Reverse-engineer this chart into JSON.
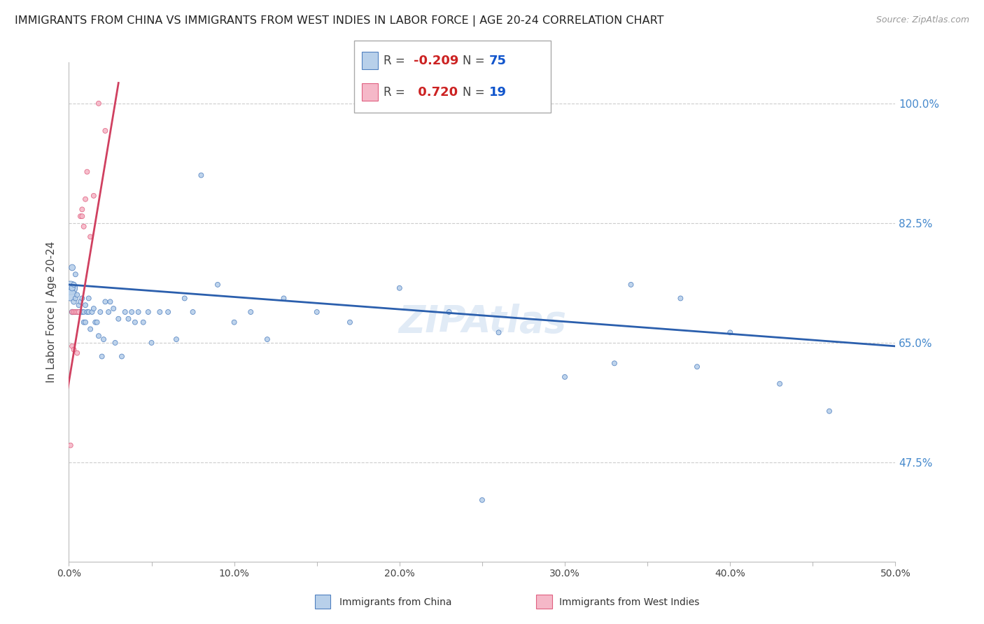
{
  "title": "IMMIGRANTS FROM CHINA VS IMMIGRANTS FROM WEST INDIES IN LABOR FORCE | AGE 20-24 CORRELATION CHART",
  "source": "Source: ZipAtlas.com",
  "ylabel": "In Labor Force | Age 20-24",
  "xlim": [
    0.0,
    0.5
  ],
  "ylim": [
    0.33,
    1.06
  ],
  "yticks": [
    0.475,
    0.65,
    0.825,
    1.0
  ],
  "ytick_labels": [
    "47.5%",
    "65.0%",
    "82.5%",
    "100.0%"
  ],
  "xticks": [
    0.0,
    0.05,
    0.1,
    0.15,
    0.2,
    0.25,
    0.3,
    0.35,
    0.4,
    0.45,
    0.5
  ],
  "xtick_labels": [
    "0.0%",
    "",
    "10.0%",
    "",
    "20.0%",
    "",
    "30.0%",
    "",
    "40.0%",
    "",
    "50.0%"
  ],
  "blue_R": "-0.209",
  "blue_N": "75",
  "pink_R": "0.720",
  "pink_N": "19",
  "blue_color": "#b8d0ea",
  "pink_color": "#f5b8c8",
  "blue_edge_color": "#5080c0",
  "pink_edge_color": "#e06080",
  "blue_line_color": "#2b5fad",
  "pink_line_color": "#d04060",
  "legend_label_blue": "Immigrants from China",
  "legend_label_pink": "Immigrants from West Indies",
  "blue_points_x": [
    0.001,
    0.001,
    0.002,
    0.002,
    0.002,
    0.003,
    0.003,
    0.003,
    0.004,
    0.004,
    0.004,
    0.005,
    0.005,
    0.006,
    0.006,
    0.007,
    0.007,
    0.008,
    0.008,
    0.009,
    0.009,
    0.01,
    0.01,
    0.011,
    0.012,
    0.012,
    0.013,
    0.014,
    0.015,
    0.016,
    0.017,
    0.018,
    0.019,
    0.02,
    0.021,
    0.022,
    0.024,
    0.025,
    0.027,
    0.028,
    0.03,
    0.032,
    0.034,
    0.036,
    0.038,
    0.04,
    0.042,
    0.045,
    0.048,
    0.05,
    0.055,
    0.06,
    0.065,
    0.07,
    0.075,
    0.08,
    0.09,
    0.1,
    0.11,
    0.12,
    0.13,
    0.15,
    0.17,
    0.2,
    0.23,
    0.26,
    0.3,
    0.34,
    0.37,
    0.4,
    0.38,
    0.43,
    0.25,
    0.33,
    0.46
  ],
  "blue_points_y": [
    0.73,
    0.72,
    0.76,
    0.73,
    0.695,
    0.71,
    0.695,
    0.735,
    0.75,
    0.715,
    0.695,
    0.72,
    0.695,
    0.705,
    0.695,
    0.71,
    0.695,
    0.715,
    0.695,
    0.68,
    0.695,
    0.705,
    0.68,
    0.695,
    0.715,
    0.695,
    0.67,
    0.695,
    0.7,
    0.68,
    0.68,
    0.66,
    0.695,
    0.63,
    0.655,
    0.71,
    0.695,
    0.71,
    0.7,
    0.65,
    0.685,
    0.63,
    0.695,
    0.685,
    0.695,
    0.68,
    0.695,
    0.68,
    0.695,
    0.65,
    0.695,
    0.695,
    0.655,
    0.715,
    0.695,
    0.895,
    0.735,
    0.68,
    0.695,
    0.655,
    0.715,
    0.695,
    0.68,
    0.73,
    0.695,
    0.665,
    0.6,
    0.735,
    0.715,
    0.665,
    0.615,
    0.59,
    0.42,
    0.62,
    0.55
  ],
  "blue_sizes": [
    200,
    150,
    40,
    35,
    30,
    30,
    28,
    28,
    25,
    25,
    25,
    25,
    25,
    25,
    25,
    25,
    25,
    25,
    25,
    25,
    25,
    25,
    25,
    25,
    25,
    25,
    25,
    25,
    25,
    25,
    25,
    25,
    25,
    25,
    25,
    25,
    25,
    25,
    25,
    25,
    25,
    25,
    25,
    25,
    25,
    25,
    25,
    25,
    25,
    25,
    25,
    25,
    25,
    25,
    25,
    25,
    25,
    25,
    25,
    25,
    25,
    25,
    25,
    25,
    25,
    25,
    25,
    25,
    25,
    25,
    25,
    25,
    25,
    25,
    25
  ],
  "pink_points_x": [
    0.001,
    0.002,
    0.002,
    0.003,
    0.003,
    0.004,
    0.005,
    0.005,
    0.006,
    0.007,
    0.008,
    0.008,
    0.009,
    0.01,
    0.011,
    0.013,
    0.015,
    0.018,
    0.022
  ],
  "pink_points_y": [
    0.5,
    0.695,
    0.645,
    0.695,
    0.64,
    0.695,
    0.695,
    0.635,
    0.695,
    0.835,
    0.845,
    0.835,
    0.82,
    0.86,
    0.9,
    0.805,
    0.865,
    1.0,
    0.96
  ],
  "pink_sizes": [
    25,
    25,
    25,
    25,
    25,
    25,
    25,
    25,
    25,
    25,
    25,
    25,
    25,
    25,
    25,
    25,
    25,
    25,
    25
  ],
  "blue_trend_x": [
    0.0,
    0.5
  ],
  "blue_trend_y": [
    0.735,
    0.645
  ],
  "pink_trend_x": [
    -0.005,
    0.03
  ],
  "pink_trend_y": [
    0.52,
    1.03
  ],
  "background_color": "#ffffff",
  "grid_color": "#cccccc",
  "axis_color": "#bbbbbb",
  "right_label_color": "#4488cc",
  "watermark": "ZIPAtlas"
}
